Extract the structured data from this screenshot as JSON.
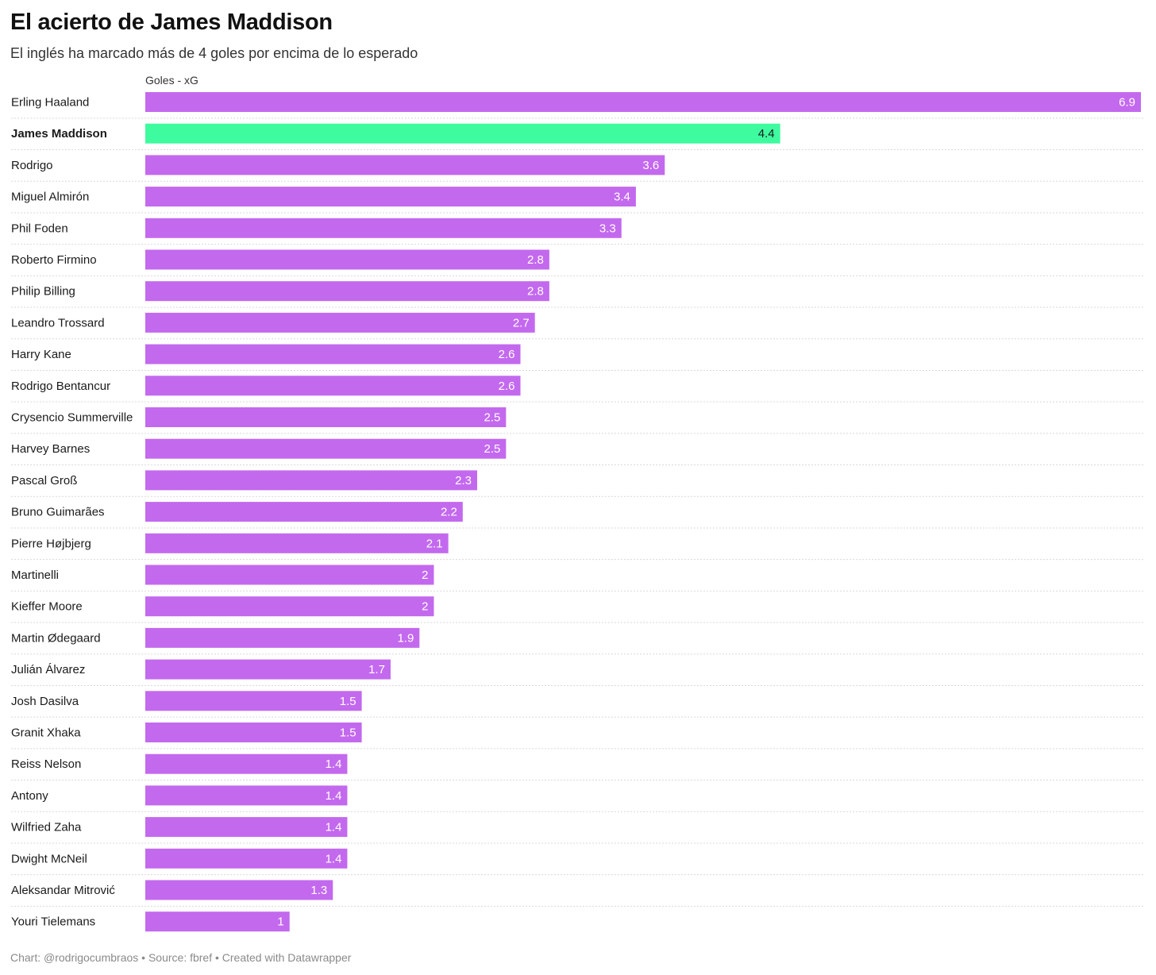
{
  "chart_data": {
    "type": "bar",
    "orientation": "horizontal",
    "title": "El acierto de James Maddison",
    "subtitle": "El inglés ha marcado más de 4 goles por encima de lo esperado",
    "value_label": "Goles - xG",
    "xlim": [
      0,
      6.9
    ],
    "highlight": "James Maddison",
    "colors": {
      "bar": "#c369ee",
      "highlight": "#3efb9f",
      "label_on_bar": "#ffffff",
      "label_on_highlight": "#1a1a1a"
    },
    "categories": [
      "Erling Haaland",
      "James Maddison",
      "Rodrigo",
      "Miguel Almirón",
      "Phil Foden",
      "Roberto Firmino",
      "Philip Billing",
      "Leandro Trossard",
      "Harry Kane",
      "Rodrigo Bentancur",
      "Crysencio Summerville",
      "Harvey Barnes",
      "Pascal Groß",
      "Bruno Guimarães",
      "Pierre Højbjerg",
      "Martinelli",
      "Kieffer Moore",
      "Martin Ødegaard",
      "Julián Álvarez",
      "Josh Dasilva",
      "Granit Xhaka",
      "Reiss Nelson",
      "Antony",
      "Wilfried Zaha",
      "Dwight McNeil",
      "Aleksandar Mitrović",
      "Youri Tielemans"
    ],
    "values": [
      6.9,
      4.4,
      3.6,
      3.4,
      3.3,
      2.8,
      2.8,
      2.7,
      2.6,
      2.6,
      2.5,
      2.5,
      2.3,
      2.2,
      2.1,
      2,
      2,
      1.9,
      1.7,
      1.5,
      1.5,
      1.4,
      1.4,
      1.4,
      1.4,
      1.3,
      1
    ]
  },
  "footer": "Chart: @rodrigocumbraos • Source: fbref • Created with Datawrapper"
}
